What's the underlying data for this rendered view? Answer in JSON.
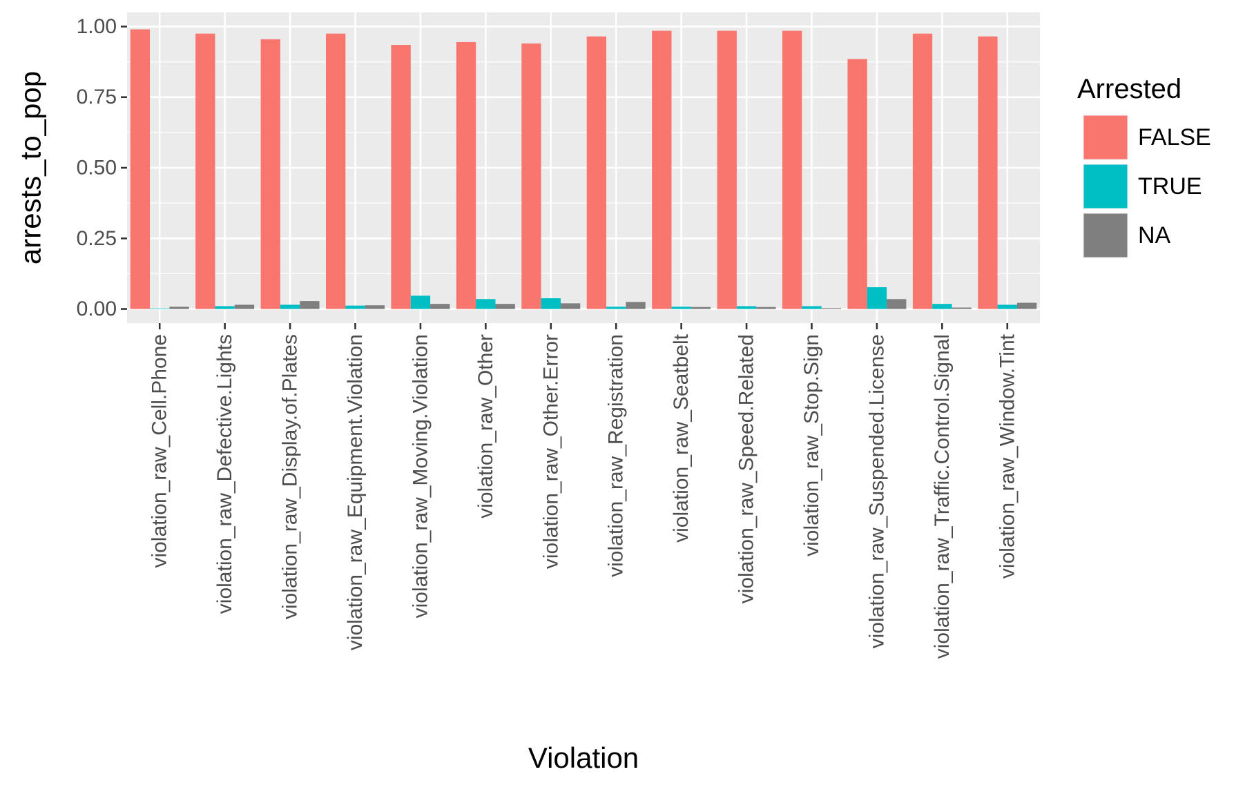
{
  "chart_data": {
    "type": "bar",
    "title": "",
    "xlabel": "Violation",
    "ylabel": "arrests_to_pop",
    "ylim": [
      -0.05,
      1.05
    ],
    "yticks": [
      0.0,
      0.25,
      0.5,
      0.75,
      1.0
    ],
    "ytick_labels": [
      "0.00",
      "0.25",
      "0.50",
      "0.75",
      "1.00"
    ],
    "categories": [
      "violation_raw_Cell.Phone",
      "violation_raw_Defective.Lights",
      "violation_raw_Display.of.Plates",
      "violation_raw_Equipment.Violation",
      "violation_raw_Moving.Violation",
      "violation_raw_Other",
      "violation_raw_Other.Error",
      "violation_raw_Registration",
      "violation_raw_Seatbelt",
      "violation_raw_Speed.Related",
      "violation_raw_Stop.Sign",
      "violation_raw_Suspended.License",
      "violation_raw_Traffic.Control.Signal",
      "violation_raw_Window.Tint"
    ],
    "series": [
      {
        "name": "FALSE",
        "color": "#F8766D",
        "values": [
          0.99,
          0.975,
          0.955,
          0.975,
          0.935,
          0.945,
          0.94,
          0.965,
          0.985,
          0.985,
          0.985,
          0.885,
          0.975,
          0.965
        ]
      },
      {
        "name": "TRUE",
        "color": "#00BFC4",
        "values": [
          0.002,
          0.01,
          0.015,
          0.012,
          0.047,
          0.035,
          0.038,
          0.008,
          0.008,
          0.01,
          0.01,
          0.077,
          0.018,
          0.015
        ]
      },
      {
        "name": "NA",
        "color": "#7F7F7F",
        "values": [
          0.008,
          0.015,
          0.028,
          0.013,
          0.018,
          0.018,
          0.02,
          0.025,
          0.007,
          0.007,
          0.003,
          0.035,
          0.005,
          0.022
        ]
      }
    ],
    "legend": {
      "title": "Arrested",
      "position": "right"
    },
    "grid": true,
    "panel_background": "#EBEBEB",
    "grid_color": "#FFFFFF"
  }
}
